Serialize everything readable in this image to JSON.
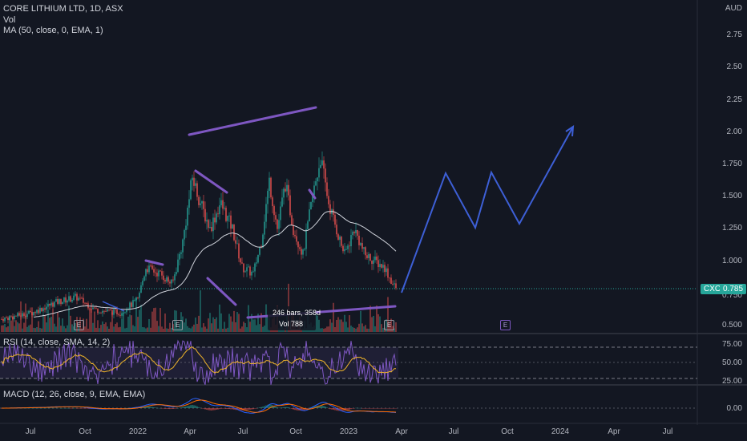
{
  "header": {
    "symbol_title": "CORE LITHIUM LTD, 1D, ASX",
    "volume_label": "Vol",
    "ma_label": "MA (50, close, 0, EMA, 1)"
  },
  "currency": "AUD",
  "price_axis": [
    "2.75",
    "2.50",
    "2.25",
    "2.00",
    "1.750",
    "1.500",
    "1.250",
    "1.000",
    "0.750",
    "0.500"
  ],
  "price_tag": {
    "ticker": "CXO",
    "value": "0.785"
  },
  "rsi": {
    "label": "RSI (14, close, SMA, 14, 2)",
    "axis": [
      "75.00",
      "50.00",
      "25.00"
    ]
  },
  "macd": {
    "label": "MACD (12, 26, close, 9, EMA, EMA)",
    "axis": [
      "0.00"
    ]
  },
  "time_axis": [
    "Jul",
    "Oct",
    "2022",
    "Apr",
    "Jul",
    "Oct",
    "2023",
    "Apr",
    "Jul",
    "Oct",
    "2024",
    "Apr",
    "Jul"
  ],
  "measure_tooltip": {
    "line1": "246 bars, 358d",
    "line2": "Vol 788"
  },
  "earnings_marker": "E",
  "colors": {
    "up": "#26a69a",
    "down": "#ef5350",
    "ma": "#d1d4dc",
    "rsi": "#7e57c2",
    "drawing_purple": "#7e57c2",
    "projection": "#3d5fd6",
    "macd": "#2962ff",
    "signal": "#ff6d00"
  },
  "chart_data": {
    "type": "candlestick",
    "price_scale_min": 0.5,
    "price_scale_max": 2.85,
    "last_price": 0.785,
    "peak_price": 1.87,
    "projection_path": [
      0.785,
      1.68,
      1.26,
      1.69,
      1.3,
      2.05
    ],
    "rsi_levels": [
      70,
      50,
      30
    ]
  }
}
